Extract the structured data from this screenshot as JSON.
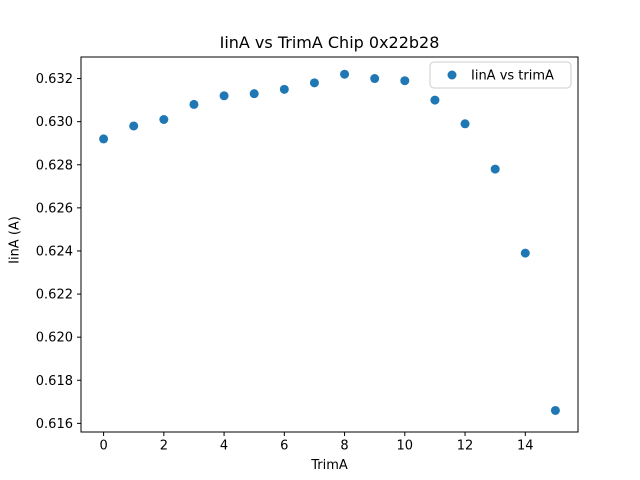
{
  "chart_data": {
    "type": "scatter",
    "title": "IinA vs TrimA Chip 0x22b28",
    "xlabel": "TrimA",
    "ylabel": "IinA (A)",
    "x": [
      0,
      1,
      2,
      3,
      4,
      5,
      6,
      7,
      8,
      9,
      10,
      11,
      12,
      13,
      14,
      15
    ],
    "series": [
      {
        "name": "IinA vs trimA",
        "values": [
          0.6292,
          0.6298,
          0.6301,
          0.6308,
          0.6312,
          0.6313,
          0.6315,
          0.6318,
          0.6322,
          0.632,
          0.6319,
          0.631,
          0.6299,
          0.6278,
          0.6239,
          0.6166
        ]
      }
    ],
    "xticks": [
      0,
      2,
      4,
      6,
      8,
      10,
      12,
      14
    ],
    "yticks": [
      0.616,
      0.618,
      0.62,
      0.622,
      0.624,
      0.626,
      0.628,
      0.63,
      0.632
    ],
    "xlim": [
      -0.75,
      15.75
    ],
    "ylim": [
      0.6156,
      0.633
    ],
    "grid": false,
    "legend": {
      "label": "IinA vs trimA",
      "position": "upper right"
    },
    "marker_color": "#1f77b4",
    "axis_color": "#000000",
    "legend_border_color": "#cccccc",
    "background_color": "#ffffff"
  }
}
